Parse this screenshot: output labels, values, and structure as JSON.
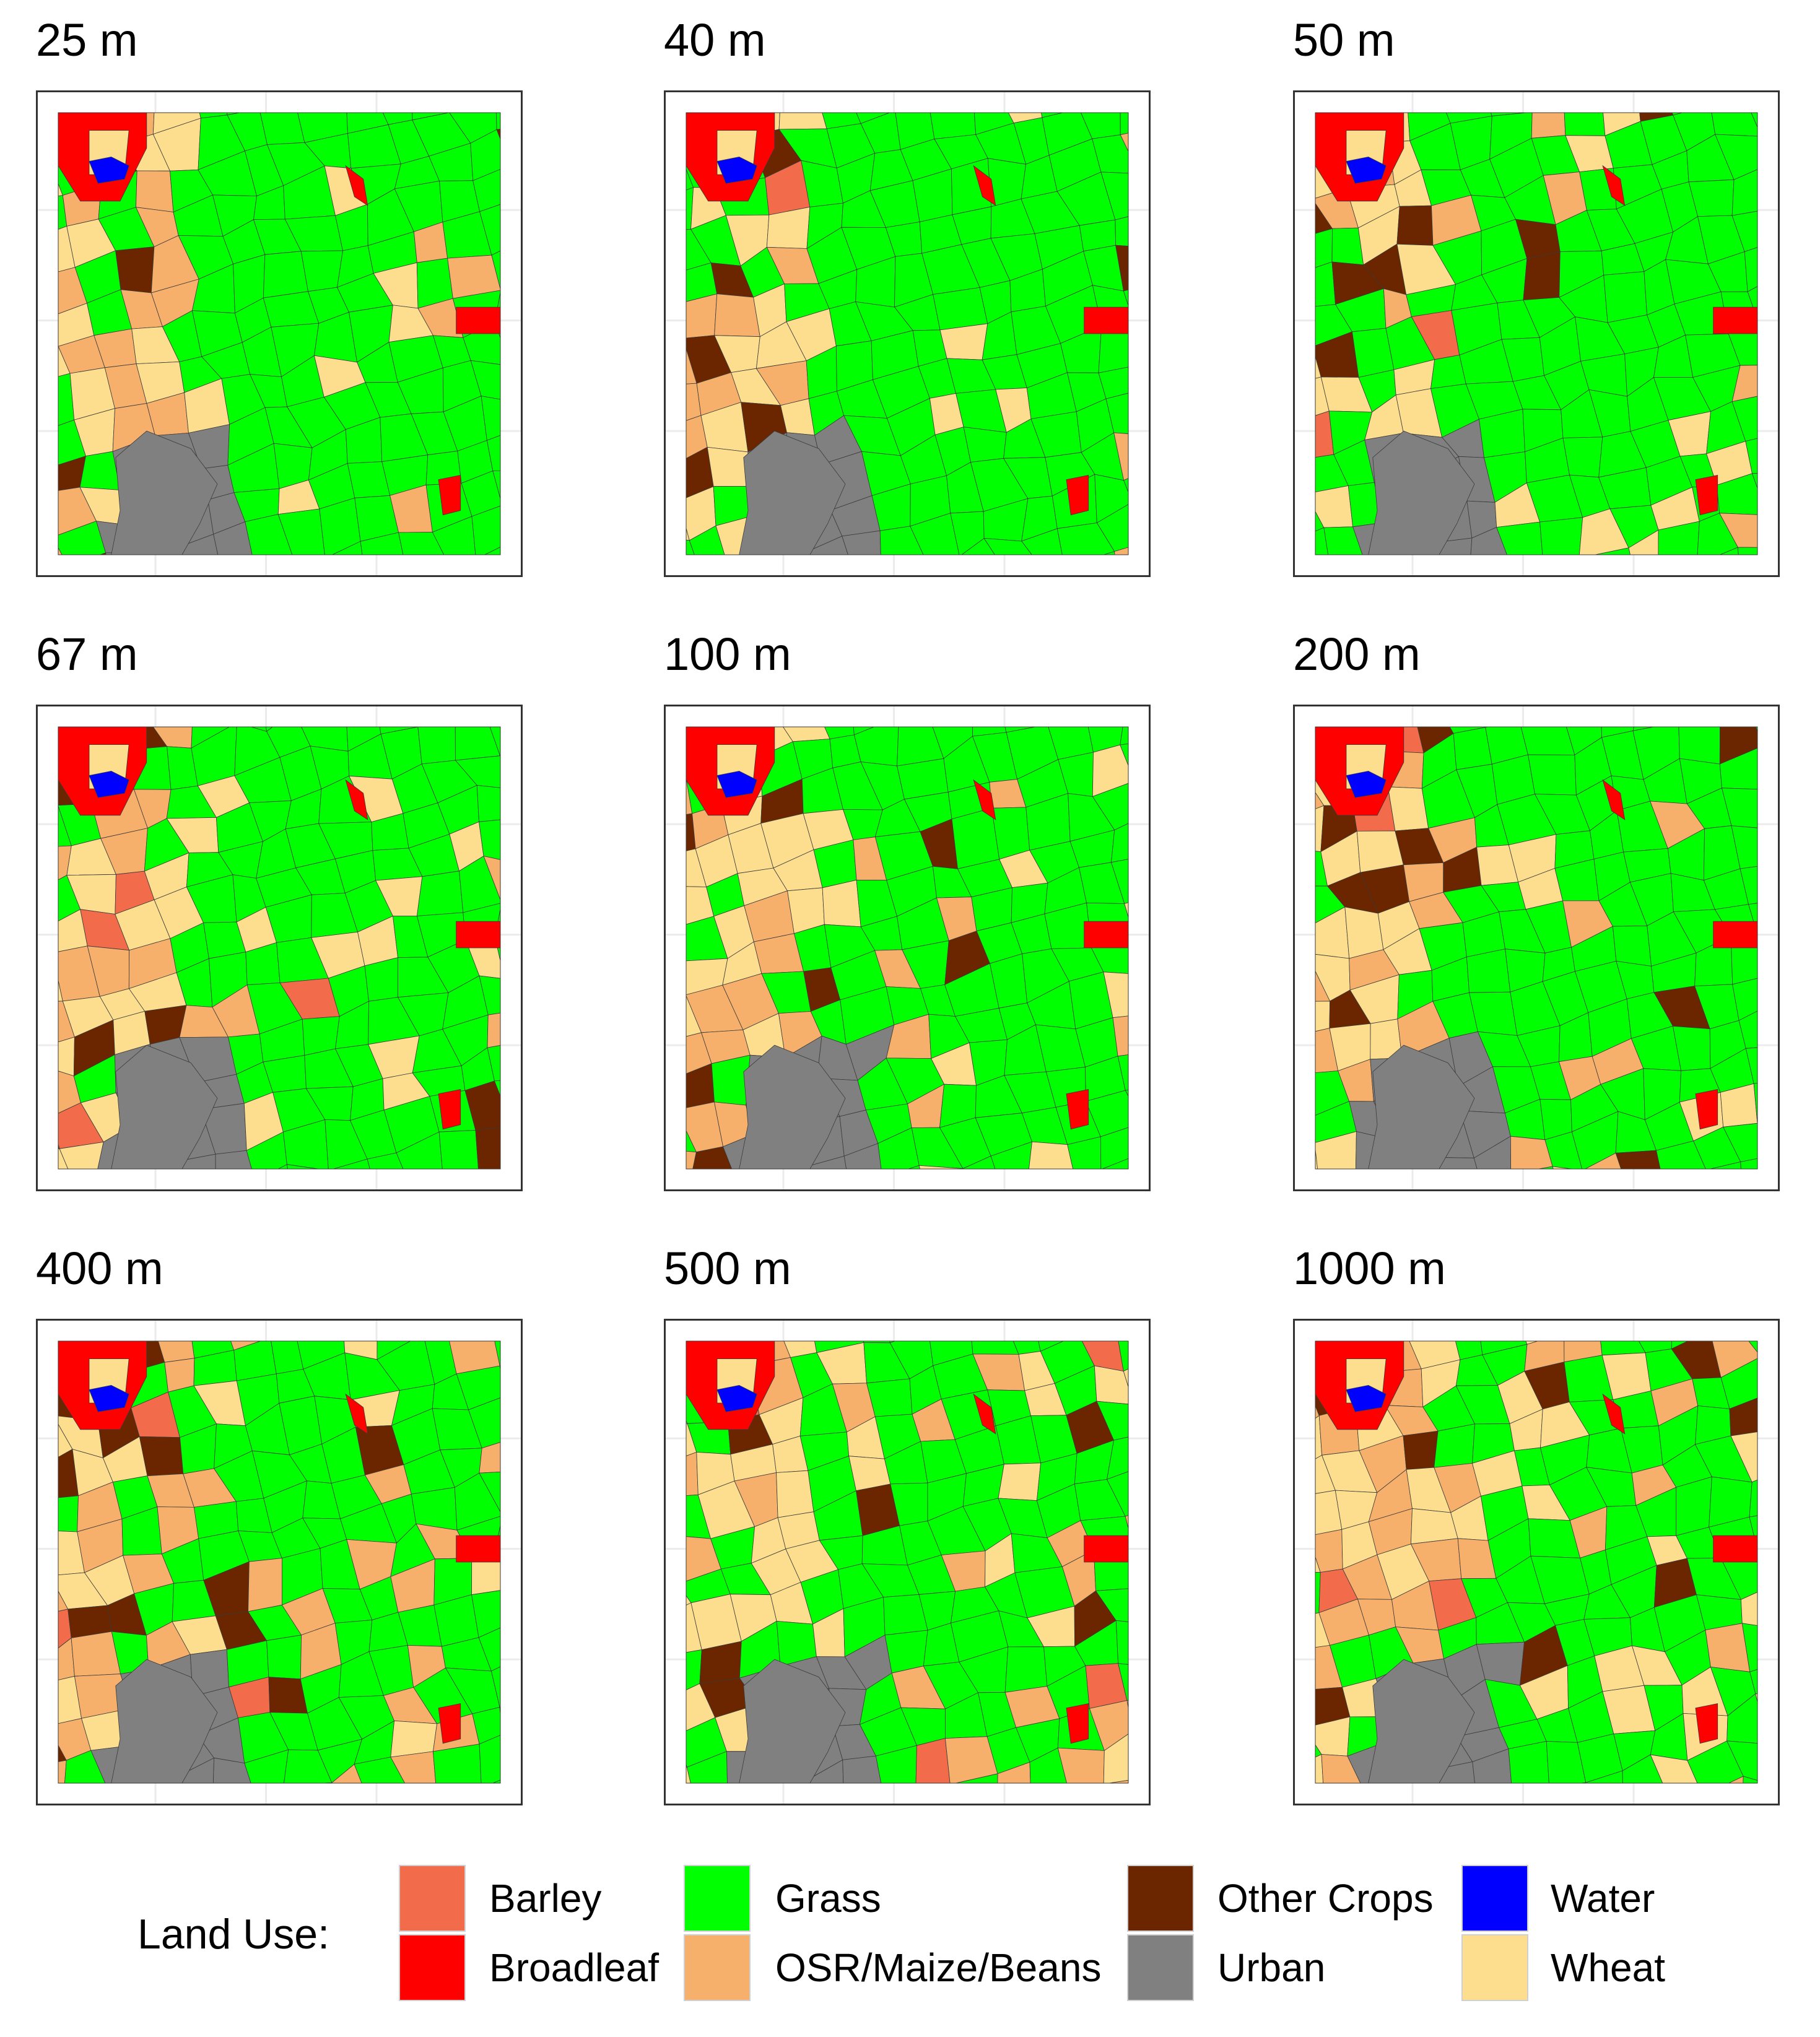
{
  "panels": [
    {
      "title": "25 m"
    },
    {
      "title": "40 m"
    },
    {
      "title": "50 m"
    },
    {
      "title": "67 m"
    },
    {
      "title": "100 m"
    },
    {
      "title": "200 m"
    },
    {
      "title": "400 m"
    },
    {
      "title": "500 m"
    },
    {
      "title": "1000 m"
    }
  ],
  "legend": {
    "title": "Land Use:",
    "items": [
      {
        "label": "Barley",
        "color": "#F26B4A"
      },
      {
        "label": "Broadleaf",
        "color": "#FF0000"
      },
      {
        "label": "Grass",
        "color": "#00FF00"
      },
      {
        "label": "OSR/Maize/Beans",
        "color": "#F6B06B"
      },
      {
        "label": "Other Crops",
        "color": "#6B2600"
      },
      {
        "label": "Urban",
        "color": "#808080"
      },
      {
        "label": "Water",
        "color": "#0000FF"
      },
      {
        "label": "Wheat",
        "color": "#FCDE8E"
      }
    ]
  }
}
